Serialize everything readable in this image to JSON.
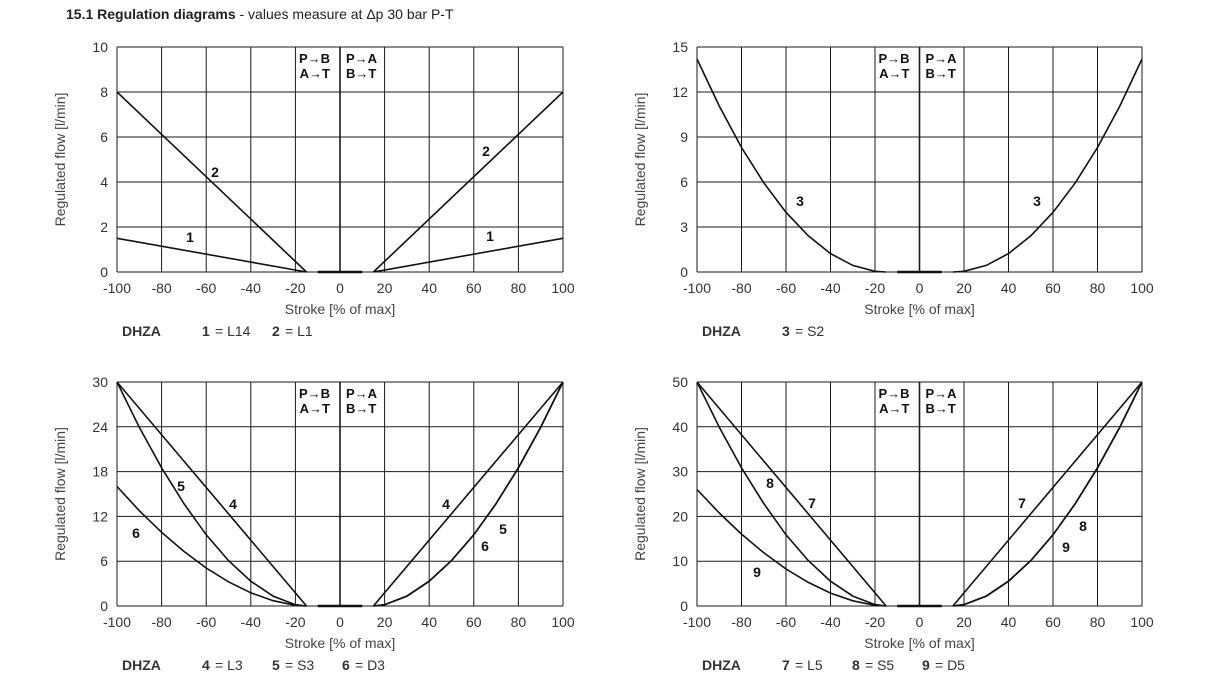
{
  "title": {
    "bold": "15.1 Regulation diagrams",
    "rest": " - values measure at Δp 30 bar P-T"
  },
  "chart_data": [
    {
      "type": "line",
      "xlabel": "Stroke [% of max]",
      "ylabel": "Regulated flow [l/min]",
      "xlim": [
        -100,
        100
      ],
      "ylim": [
        0,
        10
      ],
      "xticks": [
        "-100",
        "-80",
        "-60",
        "-40",
        "-20",
        "0",
        "20",
        "40",
        "60",
        "80",
        "100"
      ],
      "yticks": [
        "0",
        "2",
        "4",
        "6",
        "8",
        "10"
      ],
      "grid": true,
      "flow_labels": {
        "left": [
          "P→B",
          "A→T"
        ],
        "right": [
          "P→A",
          "B→T"
        ]
      },
      "deadband_x": [
        -10,
        10
      ],
      "caption": {
        "model": "DHZA",
        "items": [
          {
            "num": "1",
            "text": "= L14"
          },
          {
            "num": "2",
            "text": "= L1"
          }
        ]
      },
      "series": [
        {
          "label": "1",
          "left": [
            [
              -100,
              1.5
            ],
            [
              -15,
              0
            ]
          ],
          "right": [
            [
              15,
              0
            ],
            [
              100,
              1.5
            ]
          ]
        },
        {
          "label": "2",
          "left": [
            [
              -100,
              8
            ],
            [
              -15,
              0
            ]
          ],
          "right": [
            [
              15,
              0
            ],
            [
              100,
              8
            ]
          ]
        }
      ]
    },
    {
      "type": "line",
      "xlabel": "Stroke [% of max]",
      "ylabel": "Regulated flow [l/min]",
      "xlim": [
        -100,
        100
      ],
      "ylim": [
        0,
        15
      ],
      "xticks": [
        "-100",
        "-80",
        "-60",
        "-40",
        "-20",
        "0",
        "20",
        "40",
        "60",
        "80",
        "100"
      ],
      "yticks": [
        "0",
        "3",
        "6",
        "9",
        "12",
        "15"
      ],
      "grid": true,
      "flow_labels": {
        "left": [
          "P→B",
          "A→T"
        ],
        "right": [
          "P→A",
          "B→T"
        ]
      },
      "deadband_x": [
        -10,
        10
      ],
      "caption": {
        "model": "DHZA",
        "items": [
          {
            "num": "3",
            "text": "= S2"
          }
        ]
      },
      "series": [
        {
          "label": "3",
          "left": [
            [
              -100,
              14.2
            ],
            [
              -90,
              11.06
            ],
            [
              -80,
              8.3
            ],
            [
              -70,
              5.95
            ],
            [
              -60,
              3.98
            ],
            [
              -50,
              2.41
            ],
            [
              -40,
              1.23
            ],
            [
              -30,
              0.44
            ],
            [
              -20,
              0.05
            ],
            [
              -15,
              0
            ]
          ],
          "right": [
            [
              15,
              0
            ],
            [
              20,
              0.05
            ],
            [
              30,
              0.44
            ],
            [
              40,
              1.23
            ],
            [
              50,
              2.41
            ],
            [
              60,
              3.98
            ],
            [
              70,
              5.95
            ],
            [
              80,
              8.3
            ],
            [
              90,
              11.06
            ],
            [
              100,
              14.2
            ]
          ]
        }
      ]
    },
    {
      "type": "line",
      "xlabel": "Stroke [% of max]",
      "ylabel": "Regulated flow [l/min]",
      "xlim": [
        -100,
        100
      ],
      "ylim": [
        0,
        30
      ],
      "xticks": [
        "-100",
        "-80",
        "-60",
        "-40",
        "-20",
        "0",
        "20",
        "40",
        "60",
        "80",
        "100"
      ],
      "yticks": [
        "0",
        "6",
        "12",
        "18",
        "24",
        "30"
      ],
      "grid": true,
      "flow_labels": {
        "left": [
          "P→B",
          "A→T"
        ],
        "right": [
          "P→A",
          "B→T"
        ]
      },
      "deadband_x": [
        -10,
        10
      ],
      "caption": {
        "model": "DHZA",
        "items": [
          {
            "num": "4",
            "text": "= L3"
          },
          {
            "num": "5",
            "text": "= S3"
          },
          {
            "num": "6",
            "text": "= D3"
          }
        ]
      },
      "series": [
        {
          "label": "4",
          "left": [
            [
              -100,
              30
            ],
            [
              -15,
              0
            ]
          ],
          "right": [
            [
              15,
              0
            ],
            [
              100,
              30
            ]
          ]
        },
        {
          "label": "5",
          "left": [
            [
              -100,
              30
            ],
            [
              -90,
              23.94
            ],
            [
              -80,
              18.51
            ],
            [
              -70,
              13.71
            ],
            [
              -60,
              9.54
            ],
            [
              -50,
              6.08
            ],
            [
              -40,
              3.32
            ],
            [
              -30,
              1.32
            ],
            [
              -20,
              0.18
            ],
            [
              -15,
              0
            ]
          ],
          "right": [
            [
              15,
              0
            ],
            [
              20,
              0.18
            ],
            [
              30,
              1.32
            ],
            [
              40,
              3.32
            ],
            [
              50,
              6.08
            ],
            [
              60,
              9.54
            ],
            [
              70,
              13.71
            ],
            [
              80,
              18.51
            ],
            [
              90,
              23.94
            ],
            [
              100,
              30
            ]
          ]
        },
        {
          "label": "6",
          "left": [
            [
              -100,
              16
            ],
            [
              -90,
              12.77
            ],
            [
              -80,
              9.87
            ],
            [
              -70,
              7.31
            ],
            [
              -60,
              5.09
            ],
            [
              -50,
              3.24
            ],
            [
              -40,
              1.77
            ],
            [
              -30,
              0.71
            ],
            [
              -20,
              0.1
            ],
            [
              -15,
              0
            ]
          ],
          "right": [
            [
              15,
              0
            ],
            [
              20,
              0.18
            ],
            [
              30,
              1.32
            ],
            [
              40,
              3.32
            ],
            [
              50,
              6.08
            ],
            [
              60,
              9.54
            ],
            [
              70,
              13.71
            ],
            [
              80,
              18.51
            ],
            [
              90,
              23.94
            ],
            [
              100,
              30
            ]
          ]
        }
      ]
    },
    {
      "type": "line",
      "xlabel": "Stroke [% of max]",
      "ylabel": "Regulated flow [l/min]",
      "xlim": [
        -100,
        100
      ],
      "ylim": [
        0,
        50
      ],
      "xticks": [
        "-100",
        "-80",
        "-60",
        "-40",
        "-20",
        "0",
        "20",
        "40",
        "60",
        "80",
        "100"
      ],
      "yticks": [
        "0",
        "10",
        "20",
        "30",
        "40",
        "50"
      ],
      "grid": true,
      "flow_labels": {
        "left": [
          "P→B",
          "A→T"
        ],
        "right": [
          "P→A",
          "B→T"
        ]
      },
      "deadband_x": [
        -10,
        10
      ],
      "caption": {
        "model": "DHZA",
        "items": [
          {
            "num": "7",
            "text": "= L5"
          },
          {
            "num": "8",
            "text": "= S5"
          },
          {
            "num": "9",
            "text": "= D5"
          }
        ]
      },
      "series": [
        {
          "label": "7",
          "left": [
            [
              -100,
              50
            ],
            [
              -15,
              0
            ]
          ],
          "right": [
            [
              15,
              0
            ],
            [
              100,
              50
            ]
          ]
        },
        {
          "label": "8",
          "left": [
            [
              -100,
              50
            ],
            [
              -90,
              39.9
            ],
            [
              -80,
              30.85
            ],
            [
              -70,
              22.85
            ],
            [
              -60,
              15.9
            ],
            [
              -50,
              10.13
            ],
            [
              -40,
              5.53
            ],
            [
              -30,
              2.2
            ],
            [
              -20,
              0.31
            ],
            [
              -15,
              0
            ]
          ],
          "right": [
            [
              15,
              0
            ],
            [
              20,
              0.31
            ],
            [
              30,
              2.2
            ],
            [
              40,
              5.53
            ],
            [
              50,
              10.13
            ],
            [
              60,
              15.9
            ],
            [
              70,
              22.85
            ],
            [
              80,
              30.85
            ],
            [
              90,
              39.9
            ],
            [
              100,
              50
            ]
          ]
        },
        {
          "label": "9",
          "left": [
            [
              -100,
              26
            ],
            [
              -90,
              20.75
            ],
            [
              -80,
              16.04
            ],
            [
              -70,
              11.88
            ],
            [
              -60,
              8.27
            ],
            [
              -50,
              5.27
            ],
            [
              -40,
              2.87
            ],
            [
              -30,
              1.15
            ],
            [
              -20,
              0.16
            ],
            [
              -15,
              0
            ]
          ],
          "right": [
            [
              15,
              0
            ],
            [
              20,
              0.31
            ],
            [
              30,
              2.2
            ],
            [
              40,
              5.53
            ],
            [
              50,
              10.13
            ],
            [
              60,
              15.9
            ],
            [
              70,
              22.85
            ],
            [
              80,
              30.85
            ],
            [
              90,
              39.9
            ],
            [
              100,
              50
            ]
          ]
        }
      ]
    }
  ]
}
